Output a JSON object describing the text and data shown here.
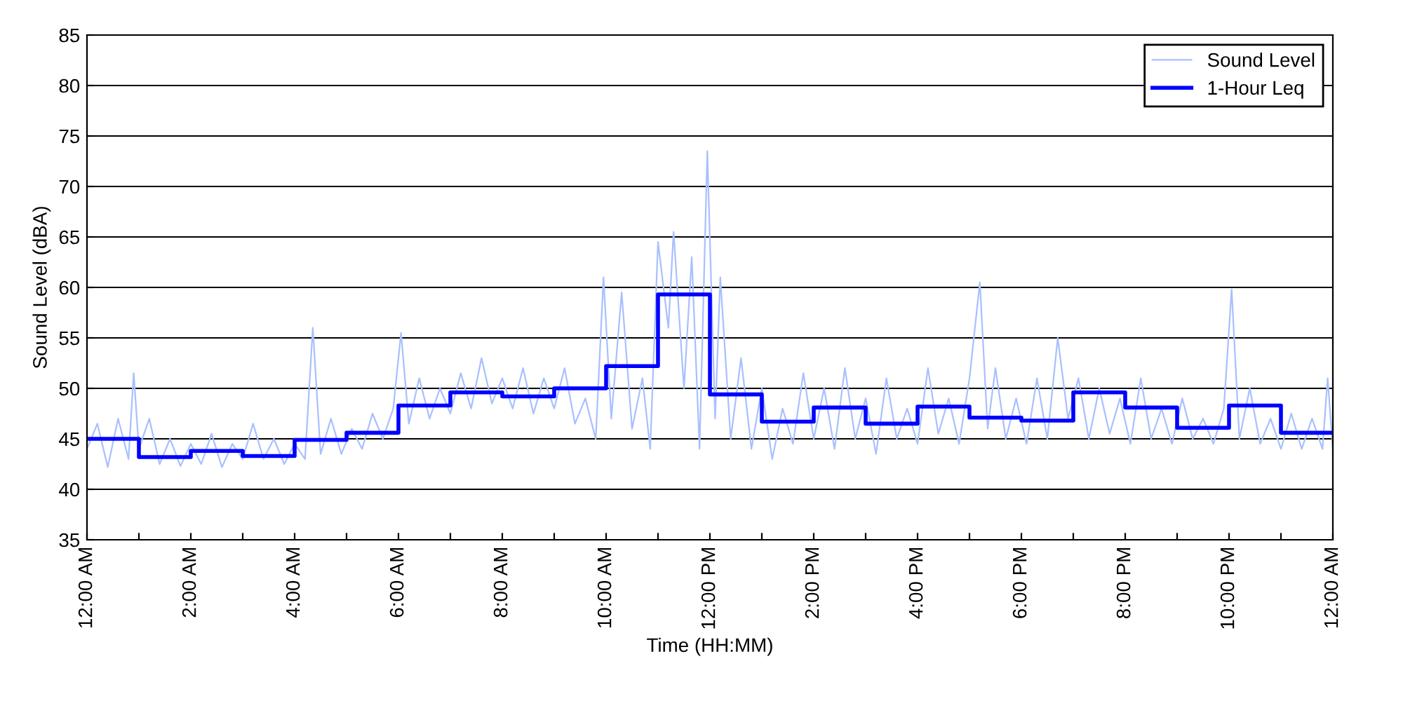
{
  "chart_data": {
    "type": "line",
    "xlabel": "Time (HH:MM)",
    "ylabel": "Sound Level (dBA)",
    "xlim": [
      0,
      24
    ],
    "ylim": [
      35,
      85
    ],
    "xticks": [
      {
        "value": 0,
        "label": "12:00 AM"
      },
      {
        "value": 1,
        "label": null
      },
      {
        "value": 2,
        "label": "2:00 AM"
      },
      {
        "value": 3,
        "label": null
      },
      {
        "value": 4,
        "label": "4:00 AM"
      },
      {
        "value": 5,
        "label": null
      },
      {
        "value": 6,
        "label": "6:00 AM"
      },
      {
        "value": 7,
        "label": null
      },
      {
        "value": 8,
        "label": "8:00 AM"
      },
      {
        "value": 9,
        "label": null
      },
      {
        "value": 10,
        "label": "10:00 AM"
      },
      {
        "value": 11,
        "label": null
      },
      {
        "value": 12,
        "label": "12:00 PM"
      },
      {
        "value": 13,
        "label": null
      },
      {
        "value": 14,
        "label": "2:00 PM"
      },
      {
        "value": 15,
        "label": null
      },
      {
        "value": 16,
        "label": "4:00 PM"
      },
      {
        "value": 17,
        "label": null
      },
      {
        "value": 18,
        "label": "6:00 PM"
      },
      {
        "value": 19,
        "label": null
      },
      {
        "value": 20,
        "label": "8:00 PM"
      },
      {
        "value": 21,
        "label": null
      },
      {
        "value": 22,
        "label": "10:00 PM"
      },
      {
        "value": 23,
        "label": null
      },
      {
        "value": 24,
        "label": "12:00 AM"
      }
    ],
    "yticks": [
      35,
      40,
      45,
      50,
      55,
      60,
      65,
      70,
      75,
      80,
      85
    ],
    "grid": "y",
    "legend": "top right",
    "series": [
      {
        "name": "Sound Level",
        "color": "#a9c0ff",
        "x": [
          0,
          0.2,
          0.4,
          0.6,
          0.8,
          0.9,
          1.0,
          1.2,
          1.4,
          1.6,
          1.8,
          2.0,
          2.2,
          2.4,
          2.6,
          2.8,
          3.0,
          3.2,
          3.4,
          3.6,
          3.8,
          4.0,
          4.2,
          4.35,
          4.5,
          4.7,
          4.9,
          5.1,
          5.3,
          5.5,
          5.7,
          5.9,
          6.05,
          6.2,
          6.4,
          6.6,
          6.8,
          7.0,
          7.2,
          7.4,
          7.6,
          7.8,
          8.0,
          8.2,
          8.4,
          8.6,
          8.8,
          9.0,
          9.2,
          9.4,
          9.6,
          9.8,
          9.95,
          10.1,
          10.3,
          10.5,
          10.7,
          10.85,
          11.0,
          11.2,
          11.3,
          11.5,
          11.65,
          11.8,
          11.95,
          12.1,
          12.2,
          12.4,
          12.6,
          12.8,
          13.0,
          13.2,
          13.4,
          13.6,
          13.8,
          14.0,
          14.2,
          14.4,
          14.6,
          14.8,
          15.0,
          15.2,
          15.4,
          15.6,
          15.8,
          16.0,
          16.2,
          16.4,
          16.6,
          16.8,
          17.0,
          17.2,
          17.35,
          17.5,
          17.7,
          17.9,
          18.1,
          18.3,
          18.5,
          18.7,
          18.9,
          19.1,
          19.3,
          19.5,
          19.7,
          19.9,
          20.1,
          20.3,
          20.5,
          20.7,
          20.9,
          21.1,
          21.3,
          21.5,
          21.7,
          21.9,
          22.05,
          22.2,
          22.4,
          22.6,
          22.8,
          23.0,
          23.2,
          23.4,
          23.6,
          23.8,
          23.9,
          24
        ],
        "values": [
          44,
          46.5,
          42.2,
          47,
          43,
          51.5,
          44,
          47,
          42.5,
          45,
          42.3,
          44.5,
          42.5,
          45.5,
          42.2,
          44.5,
          43,
          46.5,
          43,
          45,
          42.5,
          44.5,
          43,
          56,
          43.5,
          47,
          43.5,
          46,
          44,
          47.5,
          45,
          48,
          55.5,
          46.5,
          51,
          47,
          50,
          47.5,
          51.5,
          48,
          53,
          48.5,
          51,
          48,
          52,
          47.5,
          51,
          48,
          52,
          46.5,
          49,
          45,
          61,
          47,
          59.5,
          46,
          51,
          44,
          64.5,
          56,
          65.5,
          50,
          63,
          44,
          73.5,
          47,
          61,
          45,
          53,
          44,
          50,
          43,
          48,
          44.5,
          51.5,
          45,
          50,
          44,
          52,
          45,
          49,
          43.5,
          51,
          45,
          48,
          44.5,
          52,
          45.5,
          49,
          44.5,
          51,
          60.5,
          46,
          52,
          45,
          49,
          44.5,
          51,
          45,
          55,
          47,
          51,
          45,
          50,
          45.5,
          49,
          44.5,
          51,
          45,
          48,
          44.5,
          49,
          45,
          47,
          44.5,
          48,
          59.8,
          45,
          50,
          44.5,
          47,
          44,
          47.5,
          44,
          47,
          44,
          51,
          44
        ]
      },
      {
        "name": "1-Hour Leq",
        "type": "step",
        "color": "#0000ff",
        "x": [
          0,
          1,
          2,
          3,
          4,
          5,
          6,
          7,
          8,
          9,
          10,
          11,
          12,
          13,
          14,
          15,
          16,
          17,
          18,
          19,
          20,
          21,
          22,
          23,
          24
        ],
        "values": [
          45.0,
          43.2,
          43.8,
          43.3,
          44.9,
          45.6,
          48.3,
          49.6,
          49.2,
          50.0,
          52.2,
          59.3,
          49.4,
          46.7,
          48.1,
          46.5,
          48.2,
          47.1,
          46.8,
          49.6,
          48.1,
          46.1,
          48.3,
          45.6,
          45.6
        ]
      }
    ]
  }
}
